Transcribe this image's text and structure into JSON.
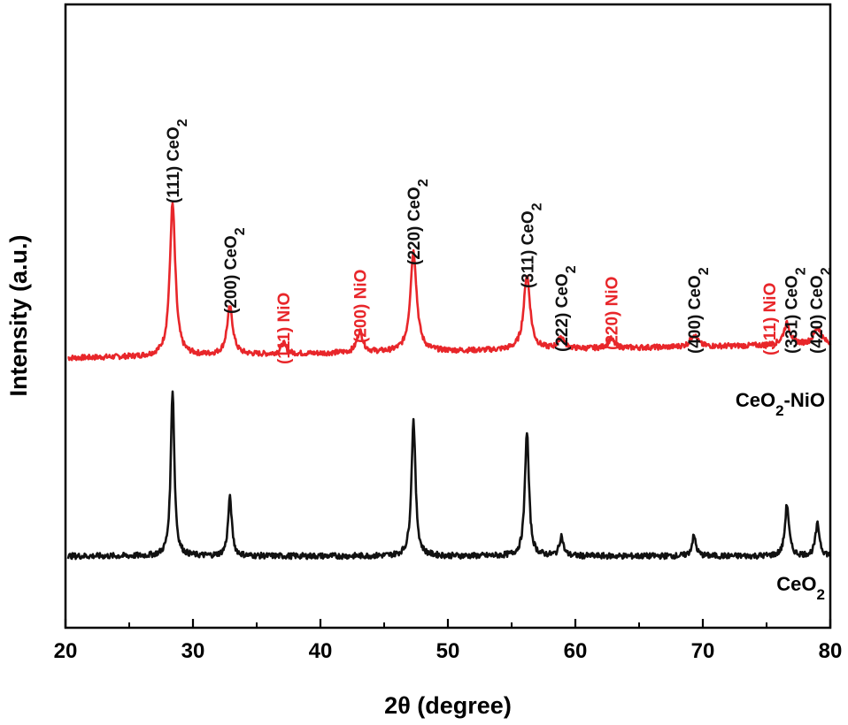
{
  "chart_data": {
    "type": "line",
    "xlabel": "2θ (degree)",
    "ylabel": "Intensity (a.u.)",
    "xlim": [
      20,
      80
    ],
    "xticks": [
      "20",
      "30",
      "40",
      "50",
      "60",
      "70",
      "80"
    ],
    "grid": false,
    "colors": {
      "CeO2-NiO": "#e8262a",
      "CeO2": "#111111",
      "ceo2_peak_label": "#111111",
      "nio_peak_label": "#e8262a"
    },
    "series": [
      {
        "key": "CeO2-NiO",
        "label_main": "CeO",
        "label_sub": "2",
        "label_tail": "-NiO",
        "baseline": 0.09,
        "peaks": [
          {
            "x": 28.4,
            "y": 1.0,
            "w": 0.26
          },
          {
            "x": 32.9,
            "y": 0.31,
            "w": 0.28
          },
          {
            "x": 37.1,
            "y": 0.07,
            "w": 0.25
          },
          {
            "x": 43.1,
            "y": 0.14,
            "w": 0.28
          },
          {
            "x": 47.3,
            "y": 0.66,
            "w": 0.3
          },
          {
            "x": 56.2,
            "y": 0.49,
            "w": 0.3
          },
          {
            "x": 58.9,
            "y": 0.08,
            "w": 0.28
          },
          {
            "x": 62.8,
            "y": 0.06,
            "w": 0.3
          },
          {
            "x": 69.3,
            "y": 0.08,
            "w": 0.32
          },
          {
            "x": 76.6,
            "y": 0.14,
            "w": 0.32
          },
          {
            "x": 79.0,
            "y": 0.11,
            "w": 0.35
          }
        ]
      },
      {
        "key": "CeO2",
        "label_main": "CeO",
        "label_sub": "2",
        "label_tail": "",
        "baseline": 0.0,
        "peaks": [
          {
            "x": 28.4,
            "y": 1.0,
            "w": 0.17
          },
          {
            "x": 32.9,
            "y": 0.35,
            "w": 0.18
          },
          {
            "x": 47.3,
            "y": 0.82,
            "w": 0.19
          },
          {
            "x": 56.2,
            "y": 0.75,
            "w": 0.19
          },
          {
            "x": 58.9,
            "y": 0.12,
            "w": 0.18
          },
          {
            "x": 69.3,
            "y": 0.12,
            "w": 0.19
          },
          {
            "x": 76.6,
            "y": 0.31,
            "w": 0.19
          },
          {
            "x": 79.0,
            "y": 0.19,
            "w": 0.2
          }
        ]
      }
    ],
    "annotations": [
      {
        "x": 28.4,
        "hkl": "(111)",
        "phase": "CeO",
        "sub": "2"
      },
      {
        "x": 32.9,
        "hkl": "(200)",
        "phase": "CeO",
        "sub": "2"
      },
      {
        "x": 37.1,
        "hkl": "(111)",
        "phase": "NiO",
        "sub": ""
      },
      {
        "x": 43.1,
        "hkl": "(200)",
        "phase": "NiO",
        "sub": ""
      },
      {
        "x": 47.3,
        "hkl": "(220)",
        "phase": "CeO",
        "sub": "2"
      },
      {
        "x": 56.2,
        "hkl": "(311)",
        "phase": "CeO",
        "sub": "2"
      },
      {
        "x": 58.9,
        "hkl": "(222)",
        "phase": "CeO",
        "sub": "2"
      },
      {
        "x": 62.8,
        "hkl": "(220)",
        "phase": "NiO",
        "sub": ""
      },
      {
        "x": 69.3,
        "hkl": "(400)",
        "phase": "CeO",
        "sub": "2"
      },
      {
        "x": 75.2,
        "hkl": "(311)",
        "phase": "NiO",
        "sub": ""
      },
      {
        "x": 76.9,
        "hkl": "(331)",
        "phase": "CeO",
        "sub": "2"
      },
      {
        "x": 78.9,
        "hkl": "(420)",
        "phase": "CeO",
        "sub": "2"
      }
    ]
  }
}
